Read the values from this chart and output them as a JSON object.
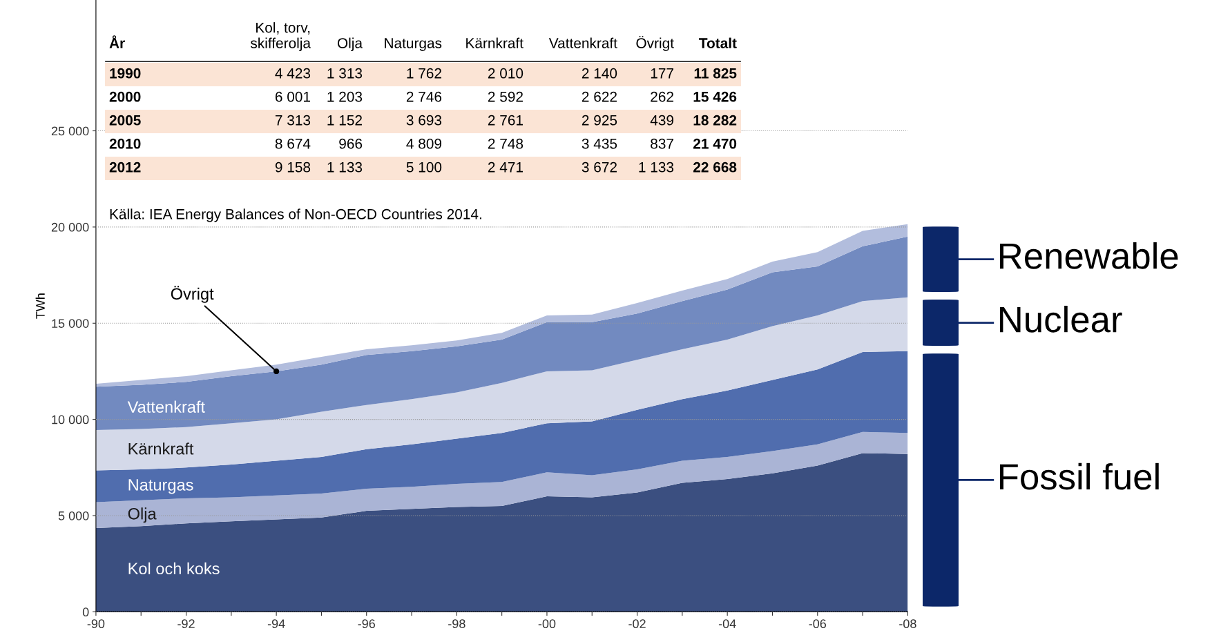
{
  "chart_data": {
    "type": "area",
    "stacked": true,
    "ylabel": "TWh",
    "categories": [
      "-90",
      null,
      "-92",
      null,
      "-94",
      null,
      "-96",
      null,
      "-98",
      null,
      "-00",
      null,
      "-02",
      null,
      "-04",
      null,
      "-06",
      null,
      "-08"
    ],
    "series": [
      {
        "name": "Kol och koks",
        "color": "#3b4f80",
        "values": [
          4350,
          4450,
          4600,
          4700,
          4800,
          4900,
          5250,
          5350,
          5450,
          5500,
          6000,
          5950,
          6200,
          6700,
          6900,
          7200,
          7600,
          8250,
          8200
        ]
      },
      {
        "name": "Olja",
        "color": "#aab4d5",
        "values": [
          1350,
          1350,
          1300,
          1250,
          1250,
          1250,
          1150,
          1150,
          1200,
          1250,
          1250,
          1150,
          1200,
          1150,
          1150,
          1150,
          1100,
          1100,
          1100
        ]
      },
      {
        "name": "Naturgas",
        "color": "#506dae",
        "values": [
          1650,
          1600,
          1600,
          1700,
          1800,
          1900,
          2050,
          2200,
          2350,
          2550,
          2550,
          2800,
          3100,
          3200,
          3450,
          3700,
          3900,
          4150,
          4250
        ]
      },
      {
        "name": "Kärnkraft",
        "color": "#d4d9e9",
        "values": [
          2100,
          2100,
          2100,
          2150,
          2150,
          2350,
          2300,
          2350,
          2400,
          2600,
          2700,
          2650,
          2600,
          2600,
          2650,
          2800,
          2800,
          2650,
          2800
        ]
      },
      {
        "name": "Vattenkraft",
        "color": "#728ac0",
        "values": [
          2250,
          2300,
          2350,
          2450,
          2500,
          2450,
          2600,
          2500,
          2400,
          2250,
          2550,
          2500,
          2400,
          2500,
          2600,
          2800,
          2550,
          2850,
          3150
        ]
      },
      {
        "color": "#b2bddd",
        "values": [
          150,
          250,
          300,
          300,
          350,
          400,
          300,
          300,
          300,
          350,
          350,
          400,
          550,
          550,
          550,
          550,
          750,
          800,
          650
        ]
      }
    ],
    "ylim": [
      0,
      31800
    ],
    "yticks": [
      0,
      {
        "value": 5000,
        "label": "5 000"
      },
      {
        "value": 10000,
        "label": "10 000"
      },
      {
        "value": 15000,
        "label": "15 000"
      },
      {
        "value": 20000,
        "label": "20 000"
      },
      {
        "value": 25000,
        "label": "25 000"
      }
    ],
    "grid": "y",
    "line_style": "dotted",
    "annotations": [
      "År",
      "Kol, torv,\nskifferolja",
      "Olja",
      "Naturgas",
      "Kärnkraft",
      "Vattenkraft",
      "Övrigt",
      "Totalt",
      "1990",
      "4 423",
      "1 313",
      "1 762",
      "2 010",
      "2 140",
      "177",
      "11 825",
      "2000",
      "6 001",
      "1 203",
      "2 746",
      "2 592",
      "2 622",
      "262",
      "15 426",
      "2005",
      "7 313",
      "1 152",
      "3 693",
      "2 761",
      "2 925",
      "439",
      "18 282",
      "2010",
      "8 674",
      "966",
      "4 809",
      "2 748",
      "3 435",
      "837",
      "21 470",
      "2012",
      "9 158",
      "1 133",
      "5 100",
      "2 471",
      "3 672",
      "1 133",
      "22 668",
      "Källa: IEA Energy Balances of Non-OECD Countries 2014.",
      {
        "text": "Övrigt",
        "x": "-94",
        "y": 12500
      },
      "Fossil fuel",
      "Nuclear",
      "Renewable"
    ]
  }
}
